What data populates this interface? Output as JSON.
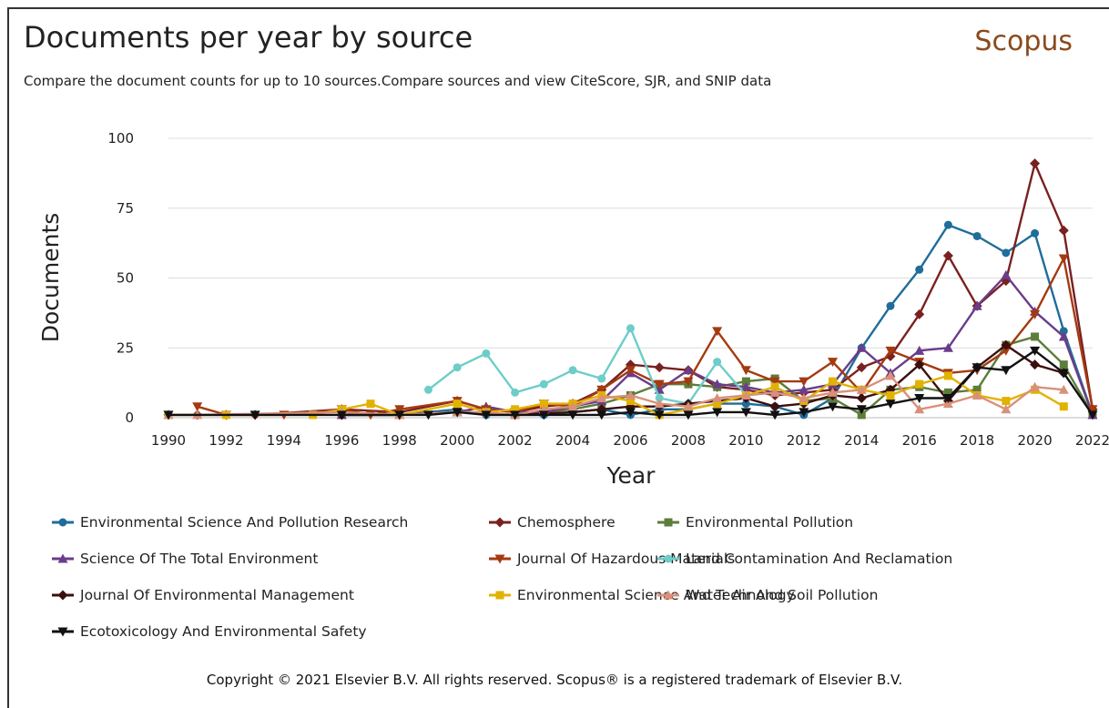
{
  "header": {
    "title": "Documents per year by source",
    "brand": "Scopus",
    "subtitle": "Compare the document counts for up to 10 sources.Compare sources and view CiteScore, SJR, and SNIP data"
  },
  "footer": {
    "copyright": "Copyright © 2021 Elsevier B.V. All rights reserved. Scopus® is a registered trademark of Elsevier B.V."
  },
  "chart_data": {
    "type": "line",
    "title": "Documents per year by source",
    "xlabel": "Year",
    "ylabel": "Documents",
    "xlim": [
      1990,
      2022
    ],
    "ylim": [
      0,
      100
    ],
    "x_ticks": [
      1990,
      1992,
      1994,
      1996,
      1998,
      2000,
      2002,
      2004,
      2006,
      2008,
      2010,
      2012,
      2014,
      2016,
      2018,
      2020,
      2022
    ],
    "y_ticks": [
      0,
      25,
      50,
      75,
      100
    ],
    "grid": "horizontal",
    "legend_position": "bottom",
    "series": [
      {
        "name": "Environmental Science And Pollution Research",
        "color": "#1f6d9a",
        "marker": "circle",
        "points": [
          [
            1996,
            1
          ],
          [
            1998,
            1
          ],
          [
            2000,
            3
          ],
          [
            2001,
            1
          ],
          [
            2002,
            1
          ],
          [
            2003,
            1
          ],
          [
            2004,
            2
          ],
          [
            2005,
            3
          ],
          [
            2006,
            1
          ],
          [
            2007,
            3
          ],
          [
            2008,
            3
          ],
          [
            2009,
            5
          ],
          [
            2010,
            5
          ],
          [
            2011,
            4
          ],
          [
            2012,
            1
          ],
          [
            2013,
            7
          ],
          [
            2014,
            25
          ],
          [
            2015,
            40
          ],
          [
            2016,
            53
          ],
          [
            2017,
            69
          ],
          [
            2018,
            65
          ],
          [
            2019,
            59
          ],
          [
            2020,
            66
          ],
          [
            2021,
            31
          ],
          [
            2022,
            1
          ]
        ]
      },
      {
        "name": "Chemosphere",
        "color": "#7a2020",
        "marker": "diamond",
        "points": [
          [
            1990,
            1
          ],
          [
            1991,
            1
          ],
          [
            1992,
            1
          ],
          [
            1993,
            1
          ],
          [
            1996,
            3
          ],
          [
            1998,
            2
          ],
          [
            2000,
            6
          ],
          [
            2001,
            3
          ],
          [
            2002,
            2
          ],
          [
            2003,
            4
          ],
          [
            2004,
            5
          ],
          [
            2005,
            10
          ],
          [
            2006,
            19
          ],
          [
            2007,
            18
          ],
          [
            2008,
            17
          ],
          [
            2009,
            11
          ],
          [
            2010,
            10
          ],
          [
            2011,
            8
          ],
          [
            2012,
            9
          ],
          [
            2013,
            10
          ],
          [
            2014,
            18
          ],
          [
            2015,
            22
          ],
          [
            2016,
            37
          ],
          [
            2017,
            58
          ],
          [
            2018,
            40
          ],
          [
            2019,
            49
          ],
          [
            2020,
            91
          ],
          [
            2021,
            67
          ],
          [
            2022,
            3
          ]
        ]
      },
      {
        "name": "Environmental Pollution",
        "color": "#5d7d3a",
        "marker": "square",
        "points": [
          [
            1996,
            1
          ],
          [
            1998,
            1
          ],
          [
            2000,
            2
          ],
          [
            2002,
            1
          ],
          [
            2004,
            3
          ],
          [
            2005,
            5
          ],
          [
            2006,
            8
          ],
          [
            2007,
            12
          ],
          [
            2008,
            12
          ],
          [
            2009,
            11
          ],
          [
            2010,
            13
          ],
          [
            2011,
            14
          ],
          [
            2012,
            6
          ],
          [
            2013,
            7
          ],
          [
            2014,
            1
          ],
          [
            2015,
            10
          ],
          [
            2016,
            11
          ],
          [
            2017,
            9
          ],
          [
            2018,
            10
          ],
          [
            2019,
            26
          ],
          [
            2020,
            29
          ],
          [
            2021,
            19
          ],
          [
            2022,
            1
          ]
        ]
      },
      {
        "name": "Science Of The Total Environment",
        "color": "#6a3d8a",
        "marker": "triangle-up",
        "points": [
          [
            1996,
            1
          ],
          [
            1998,
            1
          ],
          [
            2000,
            2
          ],
          [
            2001,
            4
          ],
          [
            2002,
            2
          ],
          [
            2003,
            2
          ],
          [
            2004,
            4
          ],
          [
            2005,
            6
          ],
          [
            2006,
            16
          ],
          [
            2007,
            10
          ],
          [
            2008,
            17
          ],
          [
            2009,
            12
          ],
          [
            2010,
            11
          ],
          [
            2011,
            9
          ],
          [
            2012,
            10
          ],
          [
            2013,
            12
          ],
          [
            2014,
            25
          ],
          [
            2015,
            16
          ],
          [
            2016,
            24
          ],
          [
            2017,
            25
          ],
          [
            2018,
            40
          ],
          [
            2019,
            51
          ],
          [
            2020,
            38
          ],
          [
            2021,
            29
          ],
          [
            2022,
            1
          ]
        ]
      },
      {
        "name": "Journal Of Hazardous Materials",
        "color": "#a43a10",
        "marker": "triangle-down",
        "points": [
          [
            1991,
            4
          ],
          [
            1992,
            1
          ],
          [
            1994,
            1
          ],
          [
            1996,
            3
          ],
          [
            1997,
            1
          ],
          [
            1998,
            3
          ],
          [
            2000,
            6
          ],
          [
            2001,
            3
          ],
          [
            2002,
            2
          ],
          [
            2003,
            5
          ],
          [
            2004,
            4
          ],
          [
            2005,
            10
          ],
          [
            2006,
            17
          ],
          [
            2007,
            12
          ],
          [
            2008,
            13
          ],
          [
            2009,
            31
          ],
          [
            2010,
            17
          ],
          [
            2011,
            13
          ],
          [
            2012,
            13
          ],
          [
            2013,
            20
          ],
          [
            2014,
            9
          ],
          [
            2015,
            24
          ],
          [
            2016,
            20
          ],
          [
            2017,
            16
          ],
          [
            2018,
            17
          ],
          [
            2019,
            24
          ],
          [
            2020,
            37
          ],
          [
            2021,
            57
          ],
          [
            2022,
            3
          ]
        ]
      },
      {
        "name": "Land Contamination And Reclamation",
        "color": "#6dcdc8",
        "marker": "circle",
        "points": [
          [
            1999,
            10
          ],
          [
            2000,
            18
          ],
          [
            2001,
            23
          ],
          [
            2002,
            9
          ],
          [
            2003,
            12
          ],
          [
            2004,
            17
          ],
          [
            2005,
            14
          ],
          [
            2006,
            32
          ],
          [
            2007,
            7
          ],
          [
            2008,
            5
          ],
          [
            2009,
            20
          ],
          [
            2010,
            8
          ]
        ]
      },
      {
        "name": "Journal Of Environmental Management",
        "color": "#3c0f0f",
        "marker": "diamond",
        "points": [
          [
            1996,
            1
          ],
          [
            1998,
            1
          ],
          [
            2000,
            2
          ],
          [
            2002,
            1
          ],
          [
            2004,
            2
          ],
          [
            2005,
            3
          ],
          [
            2006,
            4
          ],
          [
            2007,
            4
          ],
          [
            2008,
            5
          ],
          [
            2009,
            6
          ],
          [
            2010,
            7
          ],
          [
            2011,
            4
          ],
          [
            2012,
            5
          ],
          [
            2013,
            8
          ],
          [
            2014,
            7
          ],
          [
            2015,
            10
          ],
          [
            2016,
            19
          ],
          [
            2017,
            6
          ],
          [
            2018,
            18
          ],
          [
            2019,
            26
          ],
          [
            2020,
            19
          ],
          [
            2021,
            16
          ]
        ]
      },
      {
        "name": "Environmental Science And Technology",
        "color": "#e2b200",
        "marker": "square",
        "points": [
          [
            1990,
            1
          ],
          [
            1992,
            1
          ],
          [
            1995,
            1
          ],
          [
            1996,
            3
          ],
          [
            1997,
            5
          ],
          [
            1998,
            1
          ],
          [
            2000,
            5
          ],
          [
            2001,
            2
          ],
          [
            2002,
            3
          ],
          [
            2003,
            5
          ],
          [
            2004,
            5
          ],
          [
            2005,
            8
          ],
          [
            2006,
            6
          ],
          [
            2007,
            1
          ],
          [
            2008,
            3
          ],
          [
            2009,
            5
          ],
          [
            2010,
            8
          ],
          [
            2011,
            11
          ],
          [
            2012,
            6
          ],
          [
            2013,
            13
          ],
          [
            2014,
            10
          ],
          [
            2015,
            8
          ],
          [
            2016,
            12
          ],
          [
            2017,
            15
          ],
          [
            2018,
            8
          ],
          [
            2019,
            6
          ],
          [
            2020,
            10
          ],
          [
            2021,
            4
          ]
        ]
      },
      {
        "name": "Water Air And Soil Pollution",
        "color": "#d9907a",
        "marker": "triangle-up",
        "points": [
          [
            1990,
            1
          ],
          [
            1991,
            1
          ],
          [
            1996,
            2
          ],
          [
            1998,
            1
          ],
          [
            2000,
            2
          ],
          [
            2001,
            2
          ],
          [
            2002,
            1
          ],
          [
            2003,
            3
          ],
          [
            2004,
            4
          ],
          [
            2005,
            7
          ],
          [
            2006,
            8
          ],
          [
            2007,
            5
          ],
          [
            2008,
            4
          ],
          [
            2009,
            7
          ],
          [
            2010,
            8
          ],
          [
            2011,
            9
          ],
          [
            2012,
            7
          ],
          [
            2013,
            9
          ],
          [
            2014,
            10
          ],
          [
            2015,
            15
          ],
          [
            2016,
            3
          ],
          [
            2017,
            5
          ],
          [
            2018,
            8
          ],
          [
            2019,
            3
          ],
          [
            2020,
            11
          ],
          [
            2021,
            10
          ]
        ]
      },
      {
        "name": "Ecotoxicology And Environmental Safety",
        "color": "#111111",
        "marker": "triangle-down",
        "points": [
          [
            1990,
            1
          ],
          [
            1993,
            1
          ],
          [
            1996,
            1
          ],
          [
            1998,
            1
          ],
          [
            1999,
            1
          ],
          [
            2000,
            2
          ],
          [
            2001,
            1
          ],
          [
            2002,
            1
          ],
          [
            2003,
            1
          ],
          [
            2004,
            1
          ],
          [
            2005,
            1
          ],
          [
            2006,
            2
          ],
          [
            2007,
            1
          ],
          [
            2008,
            1
          ],
          [
            2009,
            2
          ],
          [
            2010,
            2
          ],
          [
            2011,
            1
          ],
          [
            2012,
            2
          ],
          [
            2013,
            4
          ],
          [
            2014,
            3
          ],
          [
            2015,
            5
          ],
          [
            2016,
            7
          ],
          [
            2017,
            7
          ],
          [
            2018,
            18
          ],
          [
            2019,
            17
          ],
          [
            2020,
            24
          ],
          [
            2021,
            16
          ],
          [
            2022,
            1
          ]
        ]
      }
    ]
  }
}
